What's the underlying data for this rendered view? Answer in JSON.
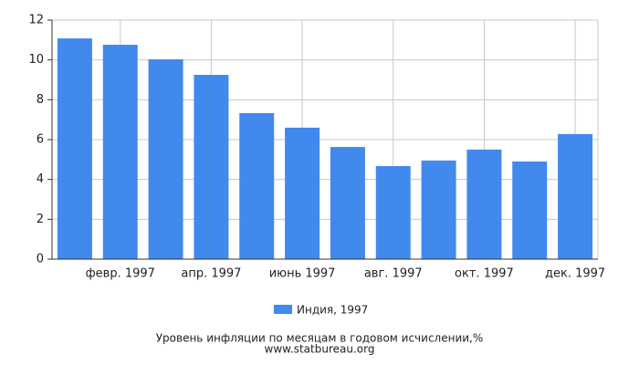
{
  "chart_data": {
    "type": "bar",
    "title": "Уровень инфляции по месяцам в годовом исчислении,%",
    "source": "www.statbureau.org",
    "categories": [
      null,
      "февр. 1997",
      null,
      "апр. 1997",
      null,
      "июнь 1997",
      null,
      "авг. 1997",
      null,
      "окт. 1997",
      null,
      "дек. 1997"
    ],
    "series": [
      {
        "name": "Индия, 1997",
        "color": "#4189ed",
        "values": [
          11.08,
          10.76,
          10.03,
          9.25,
          7.33,
          6.6,
          5.63,
          4.67,
          4.95,
          5.5,
          4.9,
          6.28
        ]
      }
    ],
    "ylim": [
      0,
      12
    ],
    "yticks": [
      0,
      2,
      4,
      6,
      8,
      10,
      12
    ],
    "grid": true
  }
}
